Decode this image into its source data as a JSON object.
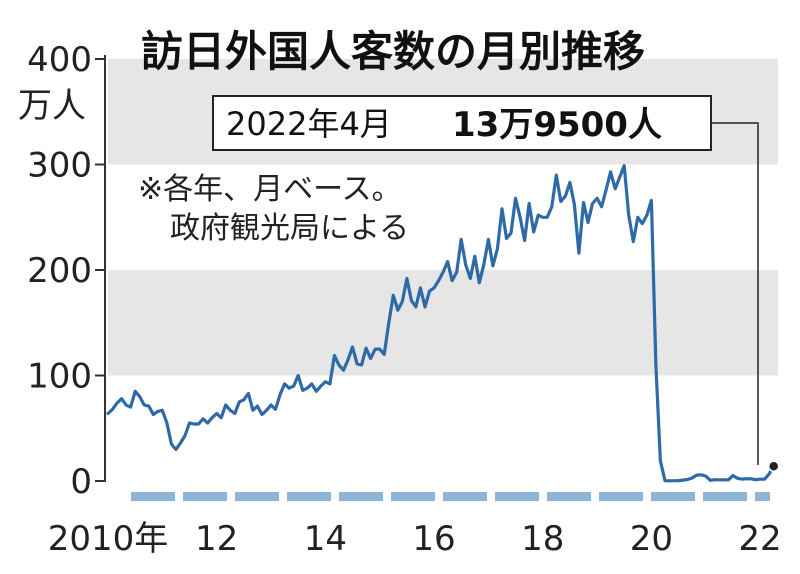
{
  "chart_data": {
    "type": "line",
    "title": "訪日外国人客数の月別推移",
    "ylabel": "万人",
    "ylim": [
      0,
      400
    ],
    "yticks": [
      0,
      100,
      200,
      300,
      400
    ],
    "xlim": [
      2010,
      2022.33
    ],
    "xticks": [
      {
        "value": 2010,
        "label": "2010年"
      },
      {
        "value": 2012,
        "label": "12"
      },
      {
        "value": 2014,
        "label": "14"
      },
      {
        "value": 2016,
        "label": "16"
      },
      {
        "value": 2018,
        "label": "18"
      },
      {
        "value": 2020,
        "label": "20"
      },
      {
        "value": 2022,
        "label": "22"
      }
    ],
    "grid_bands": [
      [
        100,
        200
      ],
      [
        300,
        400
      ]
    ],
    "note_lines": [
      "※各年、月ベース。",
      "政府観光局による"
    ],
    "callout": {
      "date": "2022年4月",
      "value_text": "13万9500人",
      "value": 13.95
    },
    "colors": {
      "line": "#2e6aa8",
      "band": "#e6e6e6",
      "dash": "#8fb4d9"
    },
    "series": [
      {
        "start_year": 2010,
        "start_month": 1,
        "values": [
          64,
          68,
          74,
          78,
          72,
          70,
          85,
          80,
          72,
          71,
          63,
          66,
          67,
          55,
          35,
          30,
          36,
          43,
          55,
          54,
          54,
          59,
          55,
          60,
          64,
          60,
          72,
          67,
          64,
          75,
          77,
          83,
          67,
          71,
          63,
          67,
          72,
          68,
          82,
          92,
          88,
          90,
          100,
          86,
          88,
          92,
          85,
          90,
          94,
          92,
          119,
          110,
          105,
          115,
          127,
          111,
          110,
          126,
          116,
          125,
          125,
          120,
          150,
          176,
          162,
          170,
          192,
          171,
          165,
          183,
          165,
          180,
          183,
          190,
          198,
          208,
          190,
          198,
          229,
          205,
          192,
          213,
          188,
          205,
          229,
          204,
          220,
          258,
          230,
          235,
          268,
          250,
          228,
          263,
          236,
          252,
          250,
          250,
          260,
          290,
          265,
          270,
          283,
          262,
          216,
          264,
          245,
          263,
          268,
          260,
          276,
          293,
          277,
          288,
          299,
          252,
          227,
          250,
          244,
          252,
          266,
          109,
          19,
          0.3,
          0.2,
          0.3,
          0.4,
          0.9,
          1.4,
          2.8,
          5.6,
          5.9,
          4.6,
          0.7,
          1.2,
          1.1,
          1.0,
          1.1,
          5.1,
          2.6,
          1.8,
          2.2,
          2.1,
          1.2,
          1.7,
          1.7,
          6.6,
          13.95
        ]
      }
    ]
  }
}
